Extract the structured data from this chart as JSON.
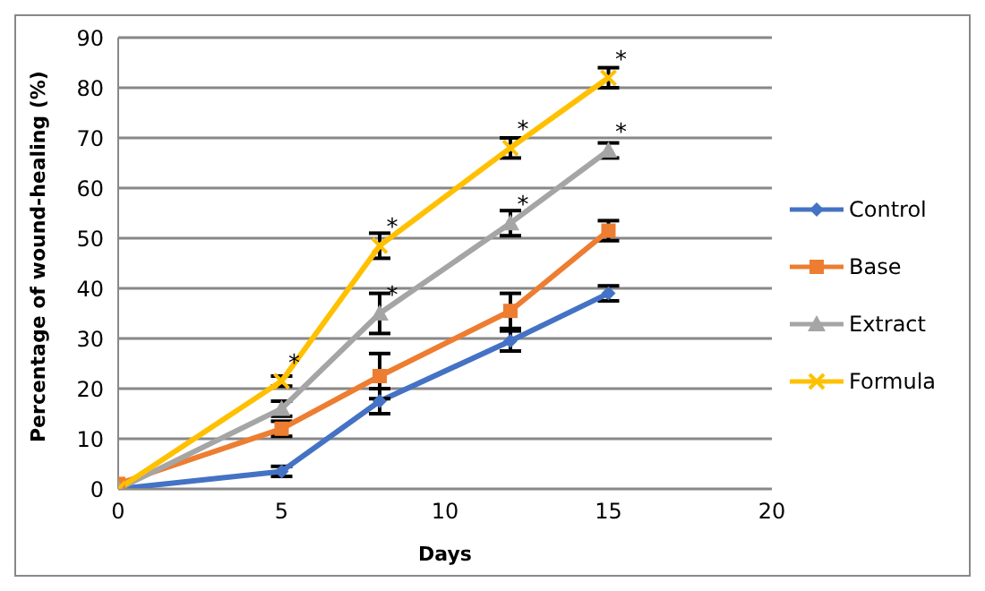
{
  "chart_data": {
    "type": "line",
    "xlabel": "Days",
    "ylabel": "Percentage of wound-healing (%)",
    "x": [
      0,
      5,
      8,
      12,
      15
    ],
    "series": [
      {
        "name": "Control",
        "color": "#4472c4",
        "marker": "diamond",
        "values": [
          0,
          3.5,
          17.5,
          29.5,
          39
        ],
        "errors": [
          null,
          1,
          2.5,
          2,
          1.5
        ]
      },
      {
        "name": "Base",
        "color": "#ed7d31",
        "marker": "square",
        "values": [
          1,
          12,
          22.5,
          35.5,
          51.5
        ],
        "errors": [
          null,
          1.5,
          4.5,
          3.5,
          2
        ]
      },
      {
        "name": "Extract",
        "color": "#a5a5a5",
        "marker": "triangle",
        "values": [
          0,
          16,
          35,
          53,
          67.5
        ],
        "errors": [
          null,
          1.5,
          4,
          2.5,
          1.5
        ]
      },
      {
        "name": "Formula",
        "color": "#ffc000",
        "marker": "cross",
        "values": [
          0,
          21.5,
          48.5,
          68,
          82
        ],
        "errors": [
          null,
          1,
          2.5,
          2,
          2
        ]
      }
    ],
    "annotations": [
      {
        "text": "*",
        "x": 5,
        "y": 21.5
      },
      {
        "text": "*",
        "x": 8,
        "y": 48.5
      },
      {
        "text": "*",
        "x": 8,
        "y": 35
      },
      {
        "text": "*",
        "x": 12,
        "y": 68
      },
      {
        "text": "*",
        "x": 12,
        "y": 53
      },
      {
        "text": "*",
        "x": 15,
        "y": 82
      },
      {
        "text": "*",
        "x": 15,
        "y": 67.5
      }
    ],
    "xlim": [
      0,
      20
    ],
    "xticks": [
      0,
      5,
      10,
      15,
      20
    ],
    "ylim": [
      0,
      90
    ],
    "yticks": [
      0,
      10,
      20,
      30,
      40,
      50,
      60,
      70,
      80,
      90
    ],
    "grid": "y",
    "legend": "right",
    "line_style": "solid"
  }
}
